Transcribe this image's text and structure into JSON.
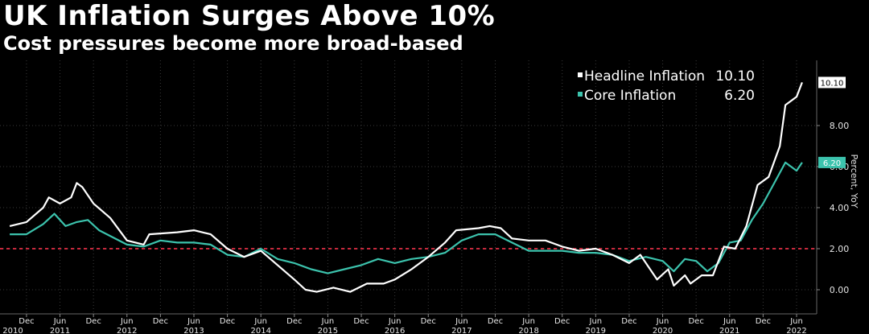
{
  "title": "UK Inflation Surges Above 10%",
  "subtitle": "Cost pressures become more broad-based",
  "colors": {
    "background": "#000000",
    "headline": "#ffffff",
    "core": "#3cc3ad",
    "reference_line": "#c8283c",
    "grid": "#3a3a3a"
  },
  "chart_data": {
    "type": "line",
    "title": "UK Inflation Surges Above 10%",
    "subtitle": "Cost pressures become more broad-based",
    "ylabel": "Percent, YoY",
    "ylim": [
      -1.0,
      11.5
    ],
    "yticks": [
      "0.00",
      "2.00",
      "4.00",
      "6.00",
      "8.00"
    ],
    "reference_line": 2.0,
    "grid": true,
    "legend_position": "top-right",
    "x_axis": {
      "start": "2010-09",
      "end": "2022-09",
      "month_labels": [
        "Dec",
        "Jun"
      ],
      "year_labels": [
        "2010",
        "2011",
        "2012",
        "2013",
        "2014",
        "2015",
        "2016",
        "2017",
        "2018",
        "2019",
        "2020",
        "2021",
        "2022"
      ]
    },
    "series": [
      {
        "name": "Headline Inflation",
        "last_value": "10.10",
        "points": [
          [
            "2010-09",
            3.1
          ],
          [
            "2010-12",
            3.3
          ],
          [
            "2011-03",
            4.0
          ],
          [
            "2011-04",
            4.5
          ],
          [
            "2011-06",
            4.2
          ],
          [
            "2011-08",
            4.5
          ],
          [
            "2011-09",
            5.2
          ],
          [
            "2011-10",
            5.0
          ],
          [
            "2011-12",
            4.2
          ],
          [
            "2012-03",
            3.5
          ],
          [
            "2012-06",
            2.4
          ],
          [
            "2012-09",
            2.2
          ],
          [
            "2012-10",
            2.7
          ],
          [
            "2013-03",
            2.8
          ],
          [
            "2013-06",
            2.9
          ],
          [
            "2013-09",
            2.7
          ],
          [
            "2013-12",
            2.0
          ],
          [
            "2014-03",
            1.6
          ],
          [
            "2014-06",
            1.9
          ],
          [
            "2014-09",
            1.2
          ],
          [
            "2014-12",
            0.5
          ],
          [
            "2015-02",
            0.0
          ],
          [
            "2015-04",
            -0.1
          ],
          [
            "2015-07",
            0.1
          ],
          [
            "2015-10",
            -0.1
          ],
          [
            "2016-01",
            0.3
          ],
          [
            "2016-04",
            0.3
          ],
          [
            "2016-06",
            0.5
          ],
          [
            "2016-09",
            1.0
          ],
          [
            "2016-12",
            1.6
          ],
          [
            "2017-03",
            2.3
          ],
          [
            "2017-05",
            2.9
          ],
          [
            "2017-09",
            3.0
          ],
          [
            "2017-11",
            3.1
          ],
          [
            "2018-01",
            3.0
          ],
          [
            "2018-03",
            2.5
          ],
          [
            "2018-06",
            2.4
          ],
          [
            "2018-09",
            2.4
          ],
          [
            "2018-12",
            2.1
          ],
          [
            "2019-03",
            1.9
          ],
          [
            "2019-06",
            2.0
          ],
          [
            "2019-09",
            1.7
          ],
          [
            "2019-12",
            1.3
          ],
          [
            "2020-02",
            1.7
          ],
          [
            "2020-05",
            0.5
          ],
          [
            "2020-07",
            1.0
          ],
          [
            "2020-08",
            0.2
          ],
          [
            "2020-10",
            0.7
          ],
          [
            "2020-11",
            0.3
          ],
          [
            "2021-01",
            0.7
          ],
          [
            "2021-03",
            0.7
          ],
          [
            "2021-05",
            2.1
          ],
          [
            "2021-07",
            2.0
          ],
          [
            "2021-09",
            3.1
          ],
          [
            "2021-11",
            5.1
          ],
          [
            "2022-01",
            5.5
          ],
          [
            "2022-03",
            7.0
          ],
          [
            "2022-04",
            9.0
          ],
          [
            "2022-06",
            9.4
          ],
          [
            "2022-07",
            10.1
          ]
        ]
      },
      {
        "name": "Core Inflation",
        "last_value": "6.20",
        "points": [
          [
            "2010-09",
            2.7
          ],
          [
            "2010-12",
            2.7
          ],
          [
            "2011-03",
            3.2
          ],
          [
            "2011-05",
            3.7
          ],
          [
            "2011-07",
            3.1
          ],
          [
            "2011-09",
            3.3
          ],
          [
            "2011-11",
            3.4
          ],
          [
            "2012-01",
            2.9
          ],
          [
            "2012-06",
            2.2
          ],
          [
            "2012-09",
            2.1
          ],
          [
            "2012-12",
            2.4
          ],
          [
            "2013-03",
            2.3
          ],
          [
            "2013-06",
            2.3
          ],
          [
            "2013-09",
            2.2
          ],
          [
            "2013-12",
            1.7
          ],
          [
            "2014-03",
            1.6
          ],
          [
            "2014-06",
            2.0
          ],
          [
            "2014-09",
            1.5
          ],
          [
            "2014-12",
            1.3
          ],
          [
            "2015-03",
            1.0
          ],
          [
            "2015-06",
            0.8
          ],
          [
            "2015-09",
            1.0
          ],
          [
            "2015-12",
            1.2
          ],
          [
            "2016-03",
            1.5
          ],
          [
            "2016-06",
            1.3
          ],
          [
            "2016-09",
            1.5
          ],
          [
            "2016-12",
            1.6
          ],
          [
            "2017-03",
            1.8
          ],
          [
            "2017-06",
            2.4
          ],
          [
            "2017-09",
            2.7
          ],
          [
            "2017-12",
            2.7
          ],
          [
            "2018-03",
            2.3
          ],
          [
            "2018-06",
            1.9
          ],
          [
            "2018-09",
            1.9
          ],
          [
            "2018-12",
            1.9
          ],
          [
            "2019-03",
            1.8
          ],
          [
            "2019-06",
            1.8
          ],
          [
            "2019-09",
            1.7
          ],
          [
            "2019-12",
            1.4
          ],
          [
            "2020-03",
            1.6
          ],
          [
            "2020-06",
            1.4
          ],
          [
            "2020-08",
            0.9
          ],
          [
            "2020-10",
            1.5
          ],
          [
            "2020-12",
            1.4
          ],
          [
            "2021-02",
            0.9
          ],
          [
            "2021-04",
            1.3
          ],
          [
            "2021-06",
            2.3
          ],
          [
            "2021-08",
            2.4
          ],
          [
            "2021-10",
            3.4
          ],
          [
            "2021-12",
            4.2
          ],
          [
            "2022-02",
            5.2
          ],
          [
            "2022-04",
            6.2
          ],
          [
            "2022-06",
            5.8
          ],
          [
            "2022-07",
            6.2
          ]
        ]
      }
    ]
  }
}
